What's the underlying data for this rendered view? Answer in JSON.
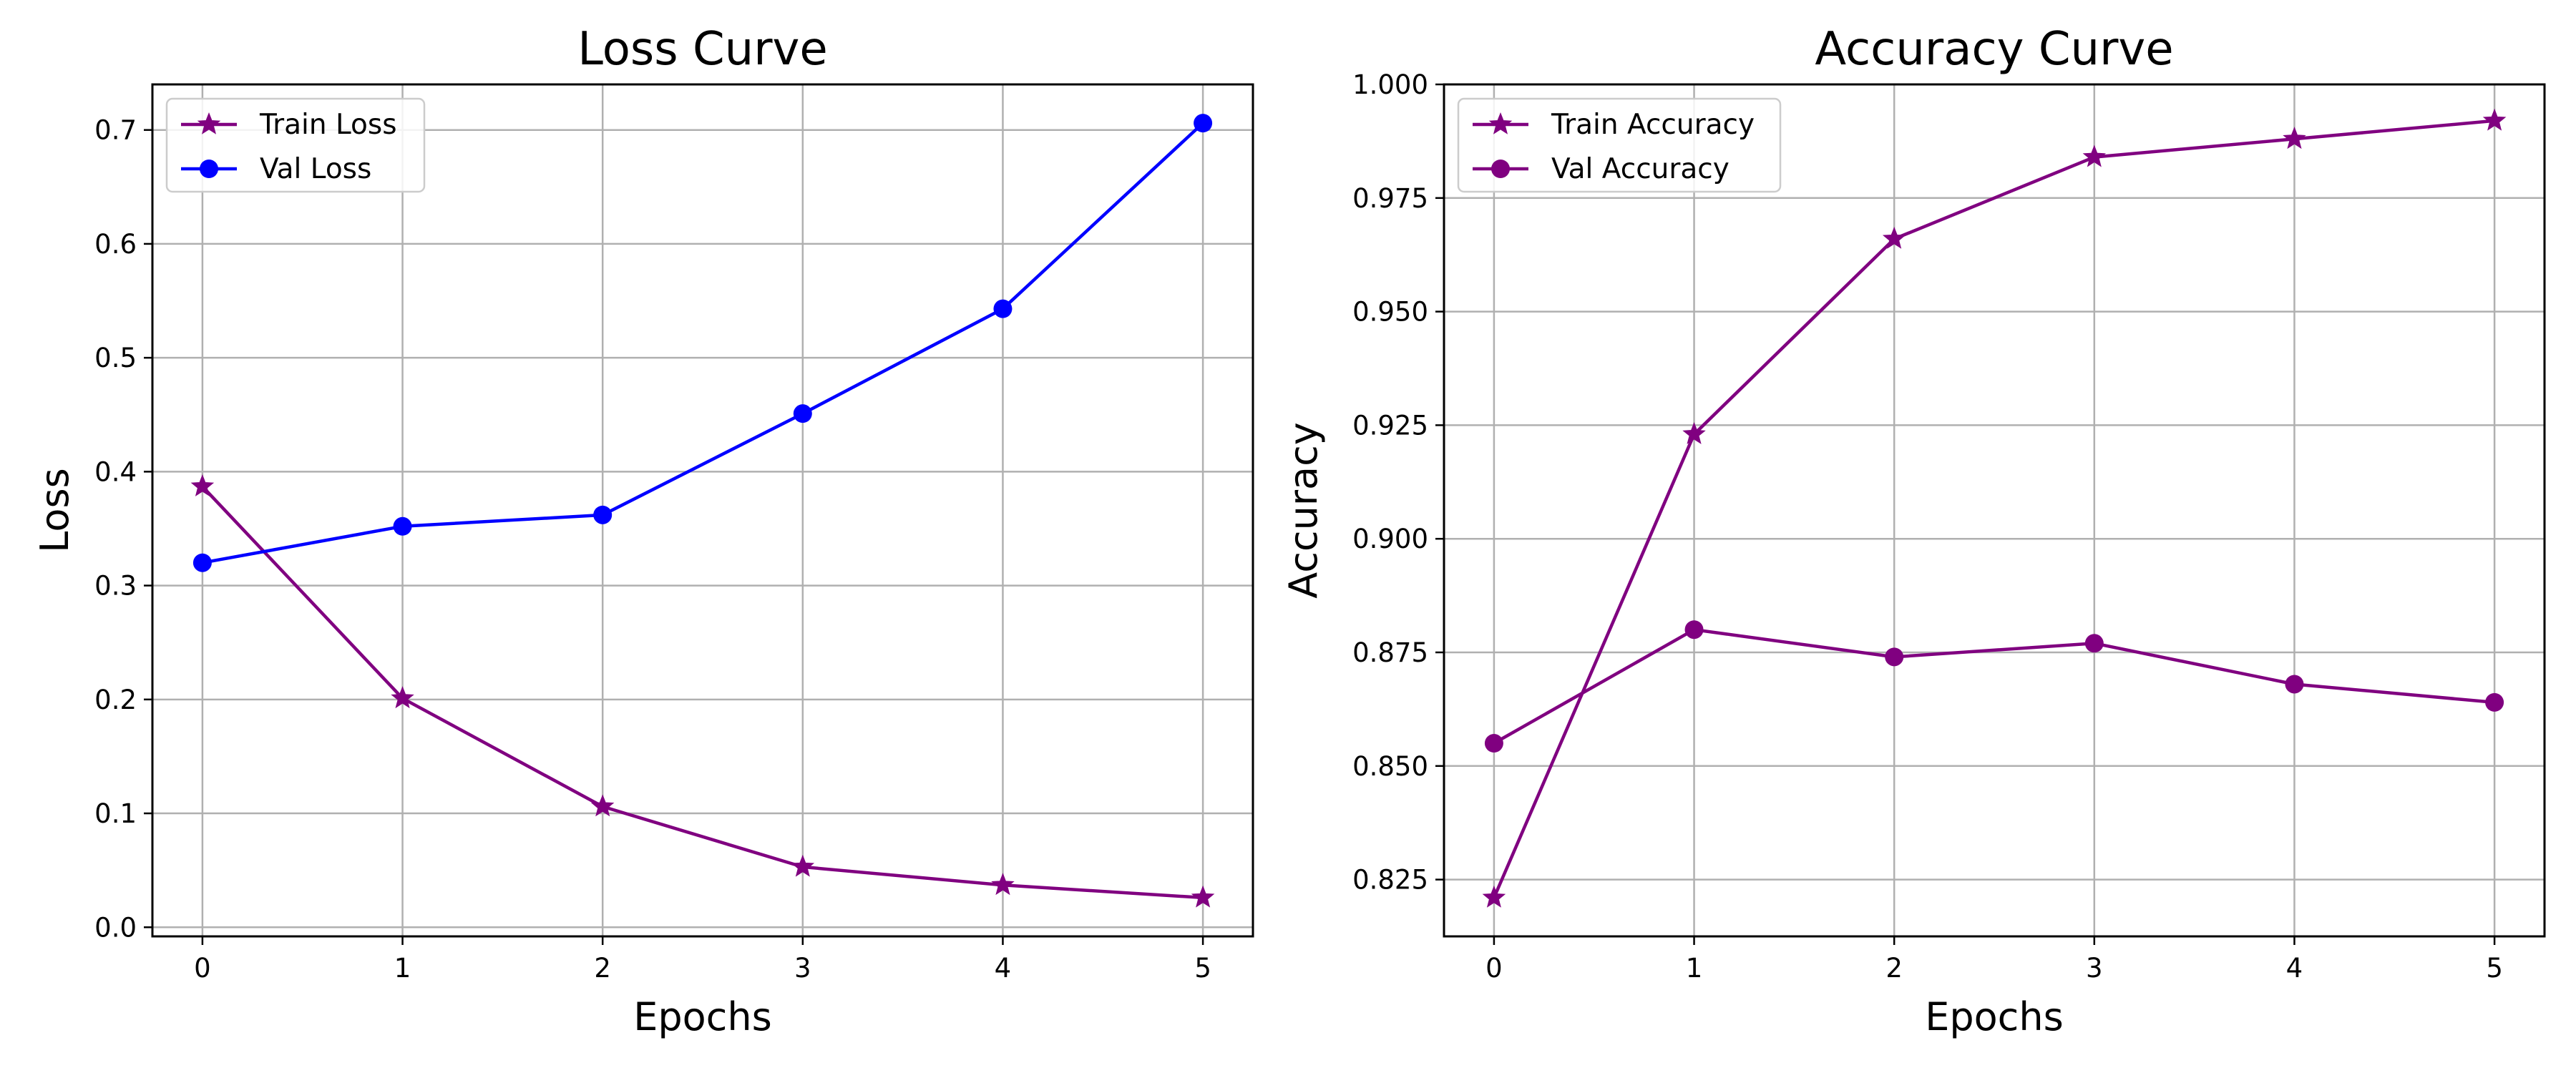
{
  "chart_data": [
    {
      "type": "line",
      "title": "Loss Curve",
      "xlabel": "Epochs",
      "ylabel": "Loss",
      "x": [
        0,
        1,
        2,
        3,
        4,
        5
      ],
      "xlim": [
        -0.25,
        5.25
      ],
      "ylim": [
        -0.008,
        0.74
      ],
      "xticks": [
        0,
        1,
        2,
        3,
        4,
        5
      ],
      "yticks": [
        0.0,
        0.1,
        0.2,
        0.3,
        0.4,
        0.5,
        0.6,
        0.7
      ],
      "ytick_labels": [
        "0.0",
        "0.1",
        "0.2",
        "0.3",
        "0.4",
        "0.5",
        "0.6",
        "0.7"
      ],
      "grid": true,
      "legend": "upper-left",
      "series": [
        {
          "name": "Train Loss",
          "values": [
            0.387,
            0.201,
            0.106,
            0.053,
            0.037,
            0.026
          ],
          "color": "#800080",
          "marker": "star"
        },
        {
          "name": "Val Loss",
          "values": [
            0.32,
            0.352,
            0.362,
            0.451,
            0.543,
            0.706
          ],
          "color": "#0000ff",
          "marker": "circle"
        }
      ]
    },
    {
      "type": "line",
      "title": "Accuracy Curve",
      "xlabel": "Epochs",
      "ylabel": "Accuracy",
      "x": [
        0,
        1,
        2,
        3,
        4,
        5
      ],
      "xlim": [
        -0.25,
        5.25
      ],
      "ylim": [
        0.8125,
        1.0
      ],
      "xticks": [
        0,
        1,
        2,
        3,
        4,
        5
      ],
      "yticks": [
        0.825,
        0.85,
        0.875,
        0.9,
        0.925,
        0.95,
        0.975,
        1.0
      ],
      "ytick_labels": [
        "0.825",
        "0.850",
        "0.875",
        "0.900",
        "0.925",
        "0.950",
        "0.975",
        "1.000"
      ],
      "grid": true,
      "legend": "upper-left",
      "series": [
        {
          "name": "Train Accuracy",
          "values": [
            0.821,
            0.923,
            0.966,
            0.984,
            0.988,
            0.992
          ],
          "color": "#800080",
          "marker": "star"
        },
        {
          "name": "Val Accuracy",
          "values": [
            0.855,
            0.88,
            0.874,
            0.877,
            0.868,
            0.864
          ],
          "color": "#800080",
          "marker": "circle"
        }
      ]
    }
  ]
}
